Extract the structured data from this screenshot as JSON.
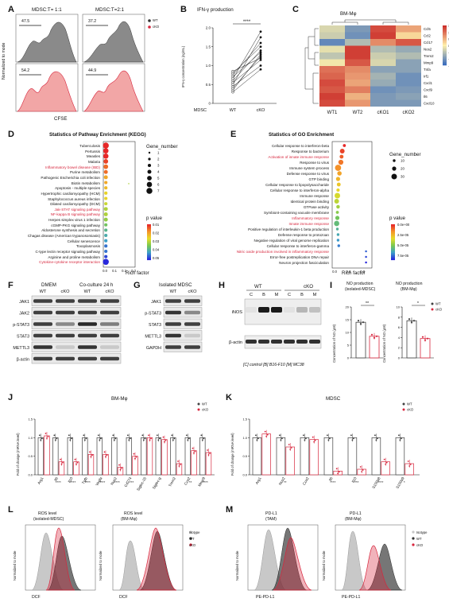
{
  "panels": {
    "A": "A",
    "B": "B",
    "C": "C",
    "D": "D",
    "E": "E",
    "F": "F",
    "G": "G",
    "H": "H",
    "I": "I",
    "J": "J",
    "K": "K",
    "L": "L",
    "M": "M"
  },
  "A": {
    "col1": "MDSC:T= 1:1",
    "col2": "MDSC:T=2:1",
    "ylabel": "Normalized to mode",
    "xlabel": "CFSE",
    "v_wt1": "47.5",
    "v_wt2": "37.2",
    "v_ko1": "54.2",
    "v_ko2": "44.9",
    "legend": [
      "WT",
      "cKO"
    ]
  },
  "B": {
    "title": "IFN-γ production",
    "ylabel": "IFN-γ concentration (ng/mL)",
    "sig": "****",
    "xcats": [
      "MDSC",
      "WT",
      "cKO"
    ],
    "yticks": [
      "0",
      "0.5",
      "1.0",
      "1.5",
      "2.0"
    ],
    "chart_data": {
      "type": "line",
      "categories": [
        "WT",
        "cKO"
      ],
      "ylim": [
        0,
        2.0
      ],
      "ylabel": "IFN-γ concentration (ng/mL)",
      "title": "IFN-γ production",
      "series": [
        [
          0.45,
          1.0
        ],
        [
          0.4,
          1.25
        ],
        [
          0.55,
          1.15
        ],
        [
          0.6,
          1.4
        ],
        [
          0.7,
          1.35
        ],
        [
          0.8,
          1.5
        ],
        [
          0.5,
          1.75
        ],
        [
          0.65,
          1.9
        ],
        [
          0.3,
          0.9
        ],
        [
          0.75,
          1.6
        ],
        [
          0.85,
          1.2
        ],
        [
          0.35,
          1.3
        ]
      ]
    }
  },
  "C": {
    "title": "BM-Mφ",
    "genes": [
      "Ccl5",
      "Ccl2",
      "Ccl17",
      "Nos2",
      "Trem2",
      "Mmp9",
      "Tnfa",
      "Irf1",
      "Cxcl1",
      "Cxcl9",
      "Il6",
      "Cxcl10"
    ],
    "cols": [
      "WT1",
      "WT2",
      "cKO1",
      "cKO2"
    ],
    "scale": [
      "1.5",
      "1",
      "0.5",
      "0",
      "-0.5",
      "-1",
      "-1.5"
    ],
    "chart_data": {
      "type": "heatmap",
      "rows": [
        "Ccl5",
        "Ccl2",
        "Ccl17",
        "Nos2",
        "Trem2",
        "Mmp9",
        "Tnfa",
        "Irf1",
        "Cxcl1",
        "Cxcl9",
        "Il6",
        "Cxcl10"
      ],
      "cols": [
        "WT1",
        "WT2",
        "cKO1",
        "cKO2"
      ],
      "values": [
        [
          -0.3,
          -1.0,
          1.3,
          0.6
        ],
        [
          -0.4,
          -1.1,
          1.4,
          0.2
        ],
        [
          -1.2,
          -0.6,
          0.8,
          1.2
        ],
        [
          -0.2,
          1.4,
          -0.6,
          -0.8
        ],
        [
          -0.5,
          1.4,
          -0.4,
          -0.6
        ],
        [
          -0.1,
          1.2,
          -0.3,
          -0.9
        ],
        [
          1.0,
          0.8,
          -0.9,
          -0.9
        ],
        [
          1.1,
          0.7,
          -0.7,
          -1.1
        ],
        [
          1.3,
          0.6,
          -0.8,
          -1.1
        ],
        [
          1.2,
          0.9,
          -1.1,
          -1.0
        ],
        [
          1.4,
          0.5,
          -1.0,
          -0.9
        ],
        [
          1.3,
          0.7,
          -1.0,
          -1.0
        ]
      ]
    }
  },
  "D": {
    "title": "Statistics of Pathway Enrichment (KEGG)",
    "xlabel": "Rich factor",
    "xticks": [
      "0.0",
      "0.1",
      "0.2",
      "0.3"
    ],
    "legend_size_title": "Gene_number",
    "sizes": [
      "1",
      "2",
      "3",
      "4",
      "5",
      "6",
      "7"
    ],
    "legend_p_title": "p value",
    "pvals": [
      "0.01",
      "0.02",
      "0.03",
      "0.04",
      "0.05"
    ],
    "terms": [
      {
        "t": "Tuberculosis",
        "red": false
      },
      {
        "t": "Pertussis",
        "red": false
      },
      {
        "t": "Measles",
        "red": false
      },
      {
        "t": "Malaria",
        "red": false
      },
      {
        "t": "Inflammatory bowel disease (IBD)",
        "red": true
      },
      {
        "t": "Purine metabolism",
        "red": false
      },
      {
        "t": "Pathogenic Escherichia coli infection",
        "red": false
      },
      {
        "t": "Biotin metabolism",
        "red": false
      },
      {
        "t": "Apoptosis - multiple species",
        "red": false
      },
      {
        "t": "Hypertrophic cardiomyopathy (HCM)",
        "red": false
      },
      {
        "t": "Staphylococcus aureus infection",
        "red": false
      },
      {
        "t": "Dilated cardiomyopathy (DCM)",
        "red": false
      },
      {
        "t": "Jak-STAT signaling pathway",
        "red": true
      },
      {
        "t": "NF-kappa B signaling pathway",
        "red": true
      },
      {
        "t": "Herpes simplex virus 1 infection",
        "red": false
      },
      {
        "t": "cGMP-PKG signaling pathway",
        "red": false
      },
      {
        "t": "Aldosterone synthesis and secretion",
        "red": false
      },
      {
        "t": "Chagas disease (American trypanosomiasis)",
        "red": false
      },
      {
        "t": "Cellular senescence",
        "red": false
      },
      {
        "t": "Toxoplasmosis",
        "red": false
      },
      {
        "t": "C-type lectin receptor signaling pathway",
        "red": false
      },
      {
        "t": "Arginine and proline metabolism",
        "red": false
      },
      {
        "t": "Cytokine-cytokine receptor interaction",
        "red": true
      }
    ],
    "chart_data": {
      "type": "scatter",
      "xlabel": "Rich factor",
      "xlim": [
        0,
        0.3
      ],
      "x": [
        0.01,
        0.01,
        0.01,
        0.01,
        0.01,
        0.01,
        0.01,
        0.01,
        0.01,
        0.01,
        0.01,
        0.01,
        0.01,
        0.01,
        0.01,
        0.01,
        0.01,
        0.01,
        0.01,
        0.01,
        0.01,
        0.01,
        0.01
      ],
      "gene_number": [
        7,
        6,
        6,
        5,
        5,
        4,
        4,
        3,
        3,
        3,
        3,
        3,
        4,
        4,
        4,
        3,
        3,
        3,
        3,
        3,
        3,
        3,
        7
      ],
      "p": [
        0.01,
        0.01,
        0.01,
        0.012,
        0.015,
        0.015,
        0.02,
        0.02,
        0.022,
        0.025,
        0.025,
        0.028,
        0.03,
        0.03,
        0.032,
        0.035,
        0.038,
        0.04,
        0.042,
        0.045,
        0.045,
        0.048,
        0.05
      ],
      "outlier": {
        "x": 0.25,
        "row": 6
      }
    }
  },
  "E": {
    "title": "Statistics of GO Enrichment",
    "xlabel": "Rich factor",
    "xticks": [
      "0.0",
      "0.4",
      "0.8"
    ],
    "legend_size_title": "Gene_number",
    "sizes": [
      "10",
      "20",
      "30"
    ],
    "legend_p_title": "p value",
    "pvals": [
      "0.0e+00",
      "2.5e-05",
      "5.0e-05",
      "7.5e-05"
    ],
    "terms": [
      {
        "t": "Cellular response to interferon-beta",
        "red": false
      },
      {
        "t": "Response to bacterium",
        "red": false
      },
      {
        "t": "Activation of innate immune response",
        "red": true
      },
      {
        "t": "Response to virus",
        "red": false
      },
      {
        "t": "Immune system process",
        "red": false
      },
      {
        "t": "Defense response to virus",
        "red": false
      },
      {
        "t": "GTP binding",
        "red": false
      },
      {
        "t": "Cellular response to lipopolysaccharide",
        "red": false
      },
      {
        "t": "Cellular response to interferon-alpha",
        "red": false
      },
      {
        "t": "Immune response",
        "red": false
      },
      {
        "t": "Identical protein binding",
        "red": false
      },
      {
        "t": "GTPase activity",
        "red": false
      },
      {
        "t": "Symbiont-containing vacuole membrane",
        "red": false
      },
      {
        "t": "Inflammatory response",
        "red": true
      },
      {
        "t": "Innate immune response",
        "red": true
      },
      {
        "t": "Positive regulation of interleukin-1 beta production",
        "red": false
      },
      {
        "t": "Defense response to protozoan",
        "red": false
      },
      {
        "t": "Negative regulation of viral genome replication",
        "red": false
      },
      {
        "t": "Cellular response to interferon-gamma",
        "red": false
      },
      {
        "t": "Nitric oxide production involved in inflammatory response",
        "red": true
      },
      {
        "t": "Error-free postreplication DNA repair",
        "red": false
      },
      {
        "t": "Neuron projection fasciculation",
        "red": false
      }
    ],
    "chart_data": {
      "type": "scatter",
      "xlabel": "Rich factor",
      "xlim": [
        0,
        1.0
      ],
      "x": [
        0.28,
        0.22,
        0.2,
        0.18,
        0.1,
        0.14,
        0.1,
        0.12,
        0.1,
        0.08,
        0.06,
        0.1,
        0.08,
        0.08,
        0.06,
        0.08,
        0.1,
        0.1,
        0.12,
        0.9,
        0.9,
        0.9
      ],
      "gene_number": [
        12,
        24,
        18,
        26,
        34,
        22,
        20,
        18,
        14,
        30,
        24,
        16,
        12,
        20,
        28,
        10,
        10,
        10,
        10,
        5,
        5,
        5
      ]
    }
  },
  "F": {
    "groups": [
      "DMEM",
      "Co-culture 24 h"
    ],
    "lanes": [
      "WT",
      "cKO",
      "WT",
      "cKO"
    ],
    "rows": [
      "JAK1",
      "JAK2",
      "p-STAT3",
      "STAT3",
      "METTL3",
      "β-actin"
    ]
  },
  "G": {
    "title": "Isolated MDSC",
    "lanes": [
      "WT",
      "cKO"
    ],
    "rows": [
      "JAK1",
      "p-STAT3",
      "STAT3",
      "METTL3",
      "GAPDH"
    ]
  },
  "H": {
    "groups": [
      "WT",
      "cKO"
    ],
    "lanes": [
      "C",
      "B",
      "M",
      "C",
      "B",
      "M"
    ],
    "rows": [
      "iNOS",
      "β-actin"
    ],
    "caption": "[C] control [B] B16-F10 [M] MC38"
  },
  "I": {
    "title1": "NO production\n(isolated-MDSC)",
    "title1a": "NO production",
    "title1b": "(isolated-MDSC)",
    "title2a": "NO production",
    "title2b": "(BM-Mφ)",
    "ylabel": "Concentration of NO (μM)",
    "sig1": "**",
    "sig2": "*",
    "legend": [
      "WT",
      "cKO"
    ],
    "yticks1": [
      "0",
      "5",
      "10",
      "15",
      "20"
    ],
    "yticks2": [
      "0",
      "2",
      "4",
      "6",
      "8",
      "10"
    ],
    "chart_data": [
      {
        "type": "bar",
        "categories": [
          "WT",
          "cKO"
        ],
        "values": [
          14,
          8.5
        ],
        "ylim": [
          0,
          20
        ]
      },
      {
        "type": "bar",
        "categories": [
          "WT",
          "cKO"
        ],
        "values": [
          7.3,
          3.8
        ],
        "ylim": [
          0,
          10
        ]
      }
    ]
  },
  "J": {
    "title": "BM-Mφ",
    "ylabel": "Fold of change (mRNA level)",
    "legend": [
      "WT",
      "cKO"
    ],
    "yticks": [
      "0.0",
      "0.5",
      "1.0",
      "1.5"
    ],
    "genes": [
      "Arg1",
      "Il6",
      "Il10",
      "Tgfb",
      "Vegfa",
      "Nos2",
      "Cd274",
      "Siglec-15",
      "Siglec-g",
      "Trem2",
      "Cox2",
      "Mmp9"
    ],
    "sigs": [
      "",
      "****",
      "****",
      "****",
      "****",
      "****",
      "***",
      "",
      "",
      "",
      "**",
      "****"
    ],
    "chart_data": {
      "type": "bar",
      "categories": [
        "Arg1",
        "Il6",
        "Il10",
        "Tgfb",
        "Vegfa",
        "Nos2",
        "Cd274",
        "Siglec-15",
        "Siglec-g",
        "Trem2",
        "Cox2",
        "Mmp9"
      ],
      "ylim": [
        0,
        1.5
      ],
      "series": [
        {
          "name": "WT",
          "values": [
            1,
            1,
            1,
            1,
            1,
            1,
            1,
            1,
            1,
            1,
            1,
            1
          ]
        },
        {
          "name": "cKO",
          "values": [
            1.05,
            0.35,
            0.35,
            0.55,
            0.55,
            0.2,
            0.5,
            1.0,
            0.95,
            0.3,
            0.65,
            0.6
          ]
        }
      ]
    }
  },
  "K": {
    "title": "MDSC",
    "ylabel": "Fold of change (mRNA level)",
    "legend": [
      "WT",
      "cKO"
    ],
    "yticks": [
      "0.0",
      "0.5",
      "1.0",
      "1.5"
    ],
    "genes": [
      "Arg1",
      "Nos2",
      "Cox2",
      "Il6",
      "Il10",
      "S100a8",
      "S100a9"
    ],
    "sigs": [
      "",
      "**",
      "",
      "****",
      "***",
      "****",
      "*"
    ],
    "chart_data": {
      "type": "bar",
      "categories": [
        "Arg1",
        "Nos2",
        "Cox2",
        "Il6",
        "Il10",
        "S100a8",
        "S100a9"
      ],
      "ylim": [
        0,
        1.5
      ],
      "series": [
        {
          "name": "WT",
          "values": [
            1,
            1,
            1,
            1,
            1,
            1,
            1
          ]
        },
        {
          "name": "cKO",
          "values": [
            1.1,
            0.75,
            0.95,
            0.1,
            0.15,
            0.35,
            0.3
          ]
        }
      ]
    }
  },
  "L": {
    "title1a": "ROS level",
    "title1b": "(isolated-MDSC)",
    "title2a": "ROS level",
    "title2b": "(BM-Mφ)",
    "xlabel": "DCF",
    "ylabel": "Normalized to mode",
    "legend": [
      "Isotype",
      "WT",
      "cKO"
    ]
  },
  "M": {
    "title1a": "PD-L1",
    "title1b": "(TAM)",
    "title2a": "PD-L1",
    "title2b": "(BM-Mφ)",
    "xlabel": "PE-PD-L1",
    "ylabel": "Normalized to mode",
    "legend": [
      "Isotype",
      "WT",
      "cKO"
    ]
  },
  "colors": {
    "wt": "#404040",
    "ko": "#d7263d",
    "ko_fill": "#f2a6a6",
    "iso": "#c8c8c8"
  }
}
